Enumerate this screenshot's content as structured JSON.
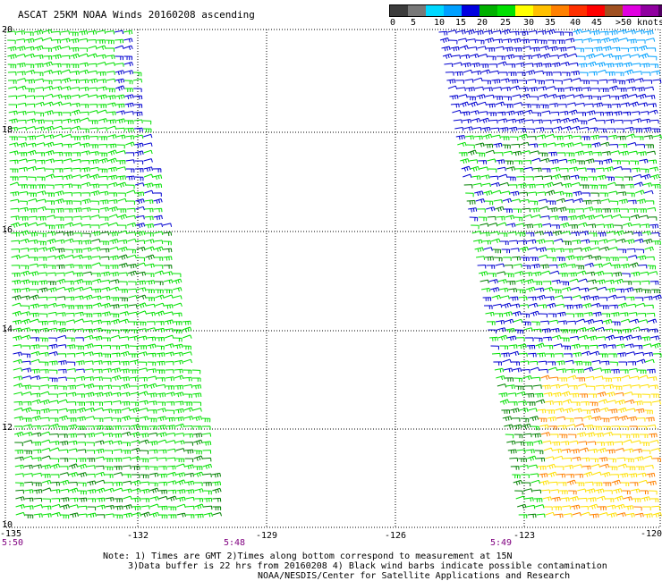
{
  "title": "ASCAT 25KM NOAA Winds 20160208 ascending",
  "legend": {
    "colors": [
      "#3c3c3c",
      "#787878",
      "#00d8ff",
      "#00a0ff",
      "#0000e0",
      "#00b000",
      "#00e000",
      "#ffff00",
      "#ffc000",
      "#ff8000",
      "#ff3000",
      "#ff0000",
      "#a05020",
      "#e000e0",
      "#9000a0",
      "#500060"
    ],
    "labels": [
      "0",
      "5",
      "10",
      "15",
      "20",
      "25",
      "30",
      "35",
      "40",
      "45",
      ">50"
    ],
    "unit": "knots"
  },
  "axes": {
    "lat_labels": [
      "20",
      "18",
      "16",
      "14",
      "12",
      "10"
    ],
    "lon_labels": [
      "-135",
      "-132",
      "-129",
      "-126",
      "-123",
      "-120"
    ]
  },
  "times": [
    "5:50",
    "5:48",
    "5:49"
  ],
  "notes": [
    "Note: 1) Times are GMT 2)Times along bottom correspond to measurement at 15N",
    "3)Data buffer is 22 hrs from 20160208 4) Black wind barbs indicate possible contamination",
    "NOAA/NESDIS/Center for Satellite Applications and Research"
  ],
  "barb_colors": {
    "blue": "#0000d0",
    "light_blue": "#00a0ff",
    "green": "#00e000",
    "dark_green": "#008000",
    "yellow": "#ffe000",
    "orange": "#ff8000"
  }
}
